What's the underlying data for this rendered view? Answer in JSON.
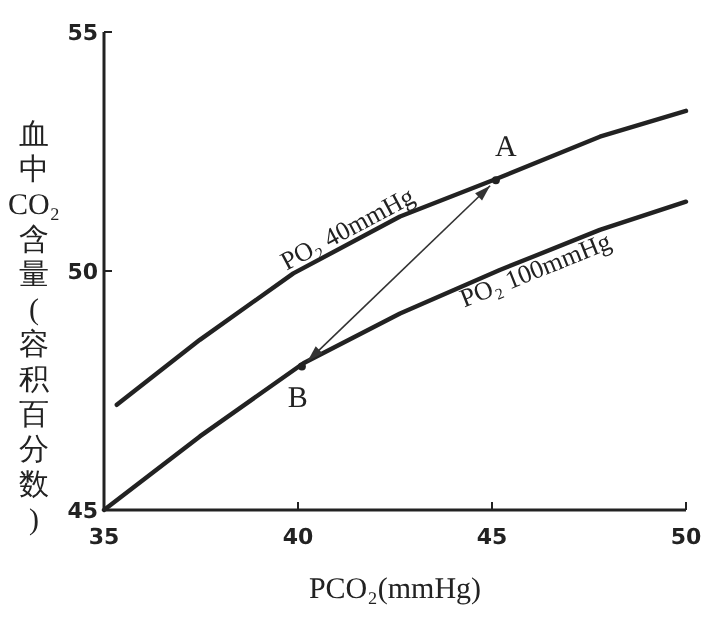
{
  "chart_data": {
    "type": "line",
    "xlabel": "PCO₂(mmHg)",
    "ylabel": "血中CO₂含量(容积百分数)",
    "series": [
      {
        "name": "PO₂ 40mmHg",
        "color": "#222222",
        "x": [
          35.33,
          37.47,
          39.88,
          42.63,
          45.12,
          47.78,
          50
        ],
        "values": [
          47.2,
          48.56,
          49.95,
          51.14,
          51.93,
          52.81,
          53.35
        ]
      },
      {
        "name": "PO₂ 100mmHg",
        "color": "#222222",
        "x": [
          35,
          37.47,
          40.14,
          42.63,
          45.2,
          47.78,
          50
        ],
        "values": [
          45,
          46.54,
          48.07,
          49.11,
          50.02,
          50.86,
          51.45
        ]
      }
    ],
    "annotations": [
      {
        "text": "A",
        "x": 45.1,
        "y": 51.9
      },
      {
        "text": "B",
        "x": 40.1,
        "y": 48.0
      }
    ],
    "xlim": [
      35,
      50
    ],
    "ylim": [
      45,
      55
    ],
    "xticks": [
      35,
      40,
      45,
      50
    ],
    "yticks": [
      45,
      50,
      55
    ],
    "grid": false,
    "marker": "none",
    "line_style": "solid"
  }
}
